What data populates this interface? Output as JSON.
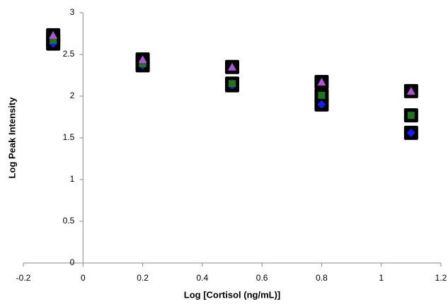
{
  "chart_data": {
    "type": "scatter",
    "x_label": "Log [Cortisol (ng/mL)]",
    "y_label": "Log Peak Intensity",
    "x": [
      -0.1,
      0.2,
      0.5,
      0.8,
      1.1
    ],
    "series": [
      {
        "color": "#1a1aff",
        "marker": "diamond",
        "values": [
          2.63,
          2.37,
          2.13,
          1.9,
          1.56
        ]
      },
      {
        "color": "#1a7a1a",
        "marker": "square",
        "values": [
          2.67,
          2.39,
          2.15,
          2.01,
          1.77
        ]
      },
      {
        "color": "#b44fe0",
        "marker": "triangle",
        "values": [
          2.73,
          2.44,
          2.35,
          2.17,
          2.06
        ]
      }
    ],
    "xlim": [
      -0.2,
      1.2
    ],
    "xticks": [
      -0.2,
      0,
      0.2,
      0.4,
      0.6,
      0.8,
      1,
      1.2
    ],
    "ylim": [
      0,
      3
    ],
    "yticks": [
      0,
      0.5,
      1,
      1.5,
      2,
      2.5,
      3
    ],
    "grid": false
  }
}
